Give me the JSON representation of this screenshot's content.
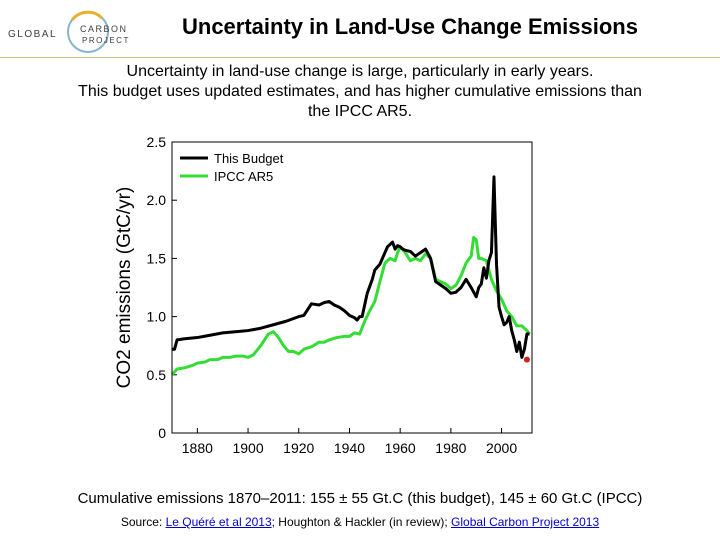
{
  "header": {
    "logo_text_left": "GLOBAL",
    "logo_text_right_1": "CARBON",
    "logo_text_right_2": "PROJECT",
    "title": "Uncertainty in Land-Use Change Emissions"
  },
  "subtitle_lines": [
    "Uncertainty in land-use change is large, particularly in early years.",
    "This budget uses updated estimates, and has higher cumulative emissions than",
    "the IPCC AR5."
  ],
  "footer": {
    "cumulative": "Cumulative emissions 1870–2011: 155 ± 55 Gt.C (this budget), 145 ± 60 Gt.C (IPCC)",
    "source_prefix": "Source: ",
    "source_link_1": "Le Quéré et al 2013",
    "source_mid": "; Houghton & Hackler (in review); ",
    "source_link_2": "Global Carbon Project 2013"
  },
  "colors": {
    "this_budget": "#000000",
    "ipcc": "#33dd33",
    "marker": "#d02020"
  },
  "chart_data": {
    "type": "line",
    "ylabel": "CO2 emissions (GtC/yr)",
    "xlim": [
      1870,
      2012
    ],
    "ylim": [
      0,
      2.5
    ],
    "xticks": [
      1880,
      1900,
      1920,
      1940,
      1960,
      1980,
      2000
    ],
    "yticks": [
      0,
      0.5,
      1.0,
      1.5,
      2.0,
      2.5
    ],
    "ytick_labels": [
      "0",
      "0.5",
      "1.0",
      "1.5",
      "2.0",
      "2.5"
    ],
    "legend_position": "top-left",
    "series": [
      {
        "name": "This Budget",
        "color": "#000000",
        "x": [
          1870,
          1871,
          1872,
          1875,
          1880,
          1885,
          1890,
          1895,
          1900,
          1905,
          1910,
          1915,
          1920,
          1922,
          1925,
          1928,
          1930,
          1932,
          1934,
          1936,
          1938,
          1940,
          1942,
          1943,
          1944,
          1945,
          1947,
          1949,
          1950,
          1952,
          1954,
          1955,
          1956,
          1957,
          1958,
          1959,
          1960,
          1961,
          1962,
          1964,
          1966,
          1968,
          1970,
          1972,
          1974,
          1976,
          1978,
          1980,
          1982,
          1984,
          1986,
          1988,
          1990,
          1991,
          1992,
          1993,
          1994,
          1995,
          1996,
          1997,
          1998,
          1999,
          2000,
          2001,
          2002,
          2003,
          2004,
          2005,
          2006,
          2007,
          2008,
          2009,
          2010,
          2011
        ],
        "y": [
          0.72,
          0.72,
          0.8,
          0.81,
          0.82,
          0.84,
          0.86,
          0.87,
          0.88,
          0.9,
          0.93,
          0.96,
          1.0,
          1.01,
          1.11,
          1.1,
          1.12,
          1.13,
          1.1,
          1.08,
          1.05,
          1.01,
          0.99,
          0.97,
          1.0,
          1.0,
          1.2,
          1.32,
          1.4,
          1.45,
          1.55,
          1.6,
          1.62,
          1.64,
          1.58,
          1.61,
          1.6,
          1.58,
          1.57,
          1.56,
          1.52,
          1.55,
          1.58,
          1.5,
          1.3,
          1.27,
          1.24,
          1.2,
          1.21,
          1.25,
          1.32,
          1.25,
          1.17,
          1.25,
          1.28,
          1.42,
          1.33,
          1.48,
          1.55,
          2.2,
          1.45,
          1.08,
          1.0,
          0.93,
          0.95,
          1.0,
          0.88,
          0.8,
          0.7,
          0.78,
          0.65,
          0.72,
          0.85,
          0.85
        ]
      },
      {
        "name": "IPCC AR5",
        "color": "#33dd33",
        "x": [
          1870,
          1872,
          1875,
          1878,
          1880,
          1883,
          1885,
          1888,
          1890,
          1893,
          1895,
          1898,
          1900,
          1902,
          1905,
          1908,
          1910,
          1912,
          1914,
          1916,
          1918,
          1920,
          1922,
          1925,
          1928,
          1930,
          1932,
          1935,
          1938,
          1940,
          1942,
          1944,
          1946,
          1948,
          1950,
          1952,
          1954,
          1956,
          1958,
          1959,
          1960,
          1962,
          1964,
          1966,
          1968,
          1970,
          1972,
          1974,
          1976,
          1978,
          1980,
          1982,
          1984,
          1986,
          1988,
          1989,
          1990,
          1991,
          1992,
          1994,
          1996,
          1998,
          2000,
          2002,
          2004,
          2006,
          2008,
          2010,
          2011
        ],
        "y": [
          0.5,
          0.55,
          0.56,
          0.58,
          0.6,
          0.61,
          0.63,
          0.63,
          0.65,
          0.65,
          0.66,
          0.66,
          0.65,
          0.67,
          0.75,
          0.85,
          0.87,
          0.82,
          0.75,
          0.7,
          0.7,
          0.68,
          0.72,
          0.74,
          0.78,
          0.78,
          0.8,
          0.82,
          0.83,
          0.83,
          0.86,
          0.85,
          0.96,
          1.05,
          1.13,
          1.3,
          1.46,
          1.5,
          1.48,
          1.55,
          1.6,
          1.55,
          1.48,
          1.5,
          1.48,
          1.54,
          1.5,
          1.32,
          1.3,
          1.28,
          1.24,
          1.27,
          1.35,
          1.46,
          1.52,
          1.68,
          1.66,
          1.5,
          1.5,
          1.48,
          1.32,
          1.22,
          1.15,
          1.05,
          1.0,
          0.92,
          0.92,
          0.88,
          0.85
        ]
      }
    ],
    "marker_point": {
      "x": 2010,
      "y": 0.63
    }
  }
}
